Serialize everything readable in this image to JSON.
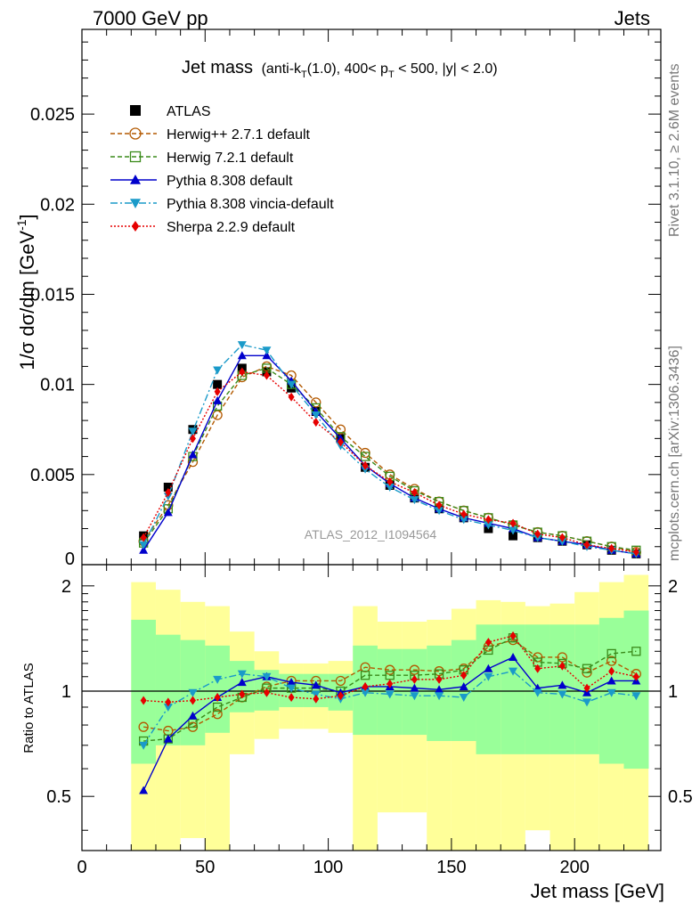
{
  "header": {
    "left": "7000 GeV pp",
    "right": "Jets"
  },
  "title": {
    "main": "Jet mass",
    "sub_prefix": "(anti-k",
    "sub_sub1": "T",
    "sub_mid": "(1.0), 400< p",
    "sub_sub2": "T",
    "sub_suffix": " < 500, |y| < 2.0)"
  },
  "side_labels": {
    "rivet": "Rivet 3.1.10, ≥ 2.6M events",
    "mcplots": "mcplots.cern.ch [arXiv:1306.3436]"
  },
  "watermark": "ATLAS_2012_I1094564",
  "axes": {
    "ylabel_top": "1/σ dσ/dm [GeV",
    "ylabel_top_sup": "-1",
    "ylabel_top_close": "]",
    "ylabel_bottom": "Ratio to ATLAS",
    "xlabel": "Jet mass [GeV]"
  },
  "ticks": {
    "top_y": [
      "0",
      "0.005",
      "0.01",
      "0.015",
      "0.02",
      "0.025"
    ],
    "bottom_y": [
      "0.5",
      "1",
      "2"
    ],
    "x": [
      "0",
      "50",
      "100",
      "150",
      "200"
    ]
  },
  "colors": {
    "atlas": "#000000",
    "herwigpp": "#b35900",
    "herwig7": "#3a8a1a",
    "pythia": "#0000cc",
    "vincia": "#1a9ac9",
    "sherpa": "#e60000",
    "band_yellow": "#ffff99",
    "band_green": "#99ff99"
  },
  "chart_data": {
    "type": "line",
    "xlabel": "Jet mass [GeV]",
    "xlim": [
      0,
      235
    ],
    "main_panel": {
      "ylabel": "1/σ dσ/dm [GeV^-1]",
      "ylim": [
        0,
        0.0297
      ],
      "x": [
        25,
        35,
        45,
        55,
        65,
        75,
        85,
        95,
        105,
        115,
        125,
        135,
        145,
        155,
        165,
        175,
        185,
        195,
        205,
        215,
        225
      ],
      "series": [
        {
          "name": "ATLAS",
          "marker": "square",
          "values": [
            0.0016,
            0.0043,
            0.0075,
            0.01,
            0.0109,
            0.0107,
            0.0098,
            0.0085,
            0.007,
            0.0054,
            0.0044,
            0.0037,
            0.0031,
            0.0026,
            0.002,
            0.0016,
            0.0015,
            0.0013,
            0.0011,
            0.0008,
            0.0006
          ]
        },
        {
          "name": "Herwig++ 2.7.1 default",
          "marker": "open-circle",
          "values": [
            0.0013,
            0.0033,
            0.0057,
            0.0083,
            0.0104,
            0.011,
            0.0105,
            0.009,
            0.0075,
            0.0062,
            0.005,
            0.0042,
            0.0035,
            0.003,
            0.0026,
            0.0022,
            0.0018,
            0.0016,
            0.0013,
            0.001,
            0.0007
          ]
        },
        {
          "name": "Herwig 7.2.1 default",
          "marker": "open-square",
          "values": [
            0.0012,
            0.0031,
            0.006,
            0.0088,
            0.0105,
            0.0109,
            0.01,
            0.0087,
            0.0071,
            0.006,
            0.0049,
            0.0041,
            0.0035,
            0.003,
            0.0026,
            0.0022,
            0.0018,
            0.0016,
            0.0013,
            0.001,
            0.0008
          ]
        },
        {
          "name": "Pythia 8.308 default",
          "marker": "triangle-up",
          "values": [
            0.0008,
            0.0029,
            0.0061,
            0.0091,
            0.0116,
            0.0116,
            0.0102,
            0.0085,
            0.007,
            0.0055,
            0.0045,
            0.0037,
            0.0031,
            0.0026,
            0.0023,
            0.002,
            0.0015,
            0.0013,
            0.0011,
            0.0008,
            0.0006
          ]
        },
        {
          "name": "Pythia 8.308 vincia-default",
          "marker": "triangle-down",
          "values": [
            0.0011,
            0.0038,
            0.0074,
            0.0108,
            0.0122,
            0.0119,
            0.01,
            0.0083,
            0.0066,
            0.0053,
            0.0043,
            0.0036,
            0.003,
            0.0025,
            0.0022,
            0.0019,
            0.0015,
            0.0013,
            0.001,
            0.0008,
            0.0006
          ]
        },
        {
          "name": "Sherpa 2.2.9 default",
          "marker": "diamond",
          "values": [
            0.0015,
            0.004,
            0.007,
            0.0096,
            0.0107,
            0.0105,
            0.0093,
            0.0079,
            0.0068,
            0.0055,
            0.0046,
            0.004,
            0.0033,
            0.0028,
            0.0025,
            0.0023,
            0.0017,
            0.0015,
            0.0011,
            0.0009,
            0.0007
          ]
        }
      ]
    },
    "ratio_panel": {
      "ylabel": "Ratio to ATLAS",
      "ylim": [
        0.35,
        2.3
      ],
      "scale": "log",
      "reference_line": 1,
      "x": [
        25,
        35,
        45,
        55,
        65,
        75,
        85,
        95,
        105,
        115,
        125,
        135,
        145,
        155,
        165,
        175,
        185,
        195,
        205,
        215,
        225
      ],
      "series": [
        {
          "name": "Herwig++ 2.7.1 default",
          "values": [
            0.79,
            0.77,
            0.79,
            0.86,
            0.96,
            1.03,
            1.07,
            1.07,
            1.07,
            1.17,
            1.15,
            1.15,
            1.14,
            1.16,
            1.34,
            1.4,
            1.25,
            1.25,
            1.13,
            1.22,
            1.12
          ]
        },
        {
          "name": "Herwig 7.2.1 default",
          "values": [
            0.72,
            0.73,
            0.81,
            0.9,
            0.96,
            1.02,
            1.02,
            1.02,
            1.0,
            1.11,
            1.11,
            1.11,
            1.12,
            1.15,
            1.31,
            1.42,
            1.21,
            1.2,
            1.16,
            1.28,
            1.3
          ]
        },
        {
          "name": "Pythia 8.308 default",
          "values": [
            0.52,
            0.73,
            0.85,
            0.96,
            1.06,
            1.1,
            1.06,
            1.04,
            0.99,
            1.03,
            1.03,
            1.02,
            1.01,
            1.03,
            1.16,
            1.25,
            1.02,
            1.04,
            0.99,
            1.07,
            1.07
          ]
        },
        {
          "name": "Pythia 8.308 vincia-default",
          "values": [
            0.7,
            0.9,
            0.99,
            1.08,
            1.12,
            1.1,
            1.02,
            0.98,
            0.95,
            0.99,
            0.98,
            0.97,
            0.97,
            0.96,
            1.1,
            1.14,
            0.99,
            0.98,
            0.93,
            0.99,
            0.97
          ]
        },
        {
          "name": "Sherpa 2.2.9 default",
          "values": [
            0.94,
            0.93,
            0.94,
            0.96,
            0.98,
            0.99,
            0.96,
            0.95,
            0.97,
            1.03,
            1.05,
            1.08,
            1.08,
            1.11,
            1.38,
            1.44,
            1.16,
            1.18,
            1.02,
            1.14,
            1.1
          ]
        }
      ],
      "bands": {
        "x_edges": [
          20,
          30,
          40,
          50,
          60,
          70,
          80,
          90,
          100,
          110,
          120,
          130,
          140,
          150,
          160,
          170,
          180,
          190,
          200,
          210,
          220,
          230
        ],
        "yellow_low": [
          0.35,
          0.35,
          0.38,
          0.35,
          0.66,
          0.73,
          0.78,
          0.78,
          0.76,
          0.35,
          0.45,
          0.45,
          0.35,
          0.35,
          0.35,
          0.35,
          0.4,
          0.35,
          0.35,
          0.35,
          0.35
        ],
        "yellow_high": [
          2.05,
          1.95,
          1.8,
          1.75,
          1.48,
          1.3,
          1.2,
          1.2,
          1.22,
          1.75,
          1.58,
          1.58,
          1.6,
          1.72,
          1.82,
          1.8,
          1.75,
          1.78,
          1.92,
          2.05,
          2.15
        ],
        "green_low": [
          0.62,
          0.7,
          0.7,
          0.76,
          0.87,
          0.88,
          0.9,
          0.9,
          0.88,
          0.75,
          0.75,
          0.75,
          0.72,
          0.72,
          0.66,
          0.66,
          0.66,
          0.66,
          0.66,
          0.62,
          0.6
        ],
        "green_high": [
          1.6,
          1.45,
          1.4,
          1.35,
          1.22,
          1.15,
          1.12,
          1.12,
          1.12,
          1.35,
          1.32,
          1.32,
          1.35,
          1.4,
          1.55,
          1.55,
          1.55,
          1.55,
          1.55,
          1.62,
          1.7
        ]
      }
    },
    "legend": {
      "placement": "top-left",
      "entries": [
        "ATLAS",
        "Herwig++ 2.7.1 default",
        "Herwig 7.2.1 default",
        "Pythia 8.308 default",
        "Pythia 8.308 vincia-default",
        "Sherpa 2.2.9 default"
      ]
    }
  }
}
